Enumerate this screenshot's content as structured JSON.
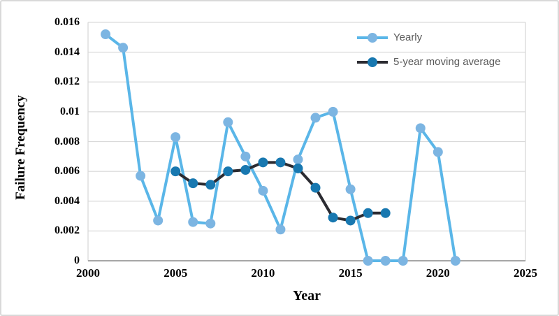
{
  "chart_data": {
    "type": "line",
    "title": "",
    "xlabel": "Year",
    "ylabel": "Failure Frequency",
    "xlim": [
      2000,
      2025
    ],
    "ylim": [
      0,
      0.016
    ],
    "x_ticks": [
      "2000",
      "2005",
      "2010",
      "2015",
      "2020",
      "2025"
    ],
    "y_ticks": [
      "0",
      "0.002",
      "0.004",
      "0.006",
      "0.008",
      "0.01",
      "0.012",
      "0.014",
      "0.016"
    ],
    "grid": "horizontal",
    "legend_position": "inside-top-right",
    "colors": {
      "gridline": "#d9d9d9",
      "plot_border": "#d9d9d9",
      "axis_line": "#a6a6a6",
      "legend_text": "#595959"
    },
    "series": [
      {
        "name": "Yearly",
        "line_color": "#5ab6e8",
        "marker_color": "#7cb5e2",
        "x": [
          2001,
          2002,
          2003,
          2004,
          2005,
          2006,
          2007,
          2008,
          2009,
          2010,
          2011,
          2012,
          2013,
          2014,
          2015,
          2016,
          2017,
          2018,
          2019,
          2020,
          2021
        ],
        "values": [
          0.0152,
          0.0143,
          0.0057,
          0.0027,
          0.0083,
          0.0026,
          0.0025,
          0.0093,
          0.007,
          0.0047,
          0.0021,
          0.0068,
          0.0096,
          0.01,
          0.0048,
          0,
          0,
          0,
          0.0089,
          0.0073,
          0
        ]
      },
      {
        "name": "5-year moving average",
        "line_color": "#2b2b31",
        "marker_color": "#1878b0",
        "x": [
          2005,
          2006,
          2007,
          2008,
          2009,
          2010,
          2011,
          2012,
          2013,
          2014,
          2015,
          2016,
          2017
        ],
        "values": [
          0.006,
          0.0052,
          0.0051,
          0.006,
          0.0061,
          0.0066,
          0.0066,
          0.0062,
          0.0049,
          0.0029,
          0.0027,
          0.0032,
          0.0032
        ]
      }
    ]
  }
}
